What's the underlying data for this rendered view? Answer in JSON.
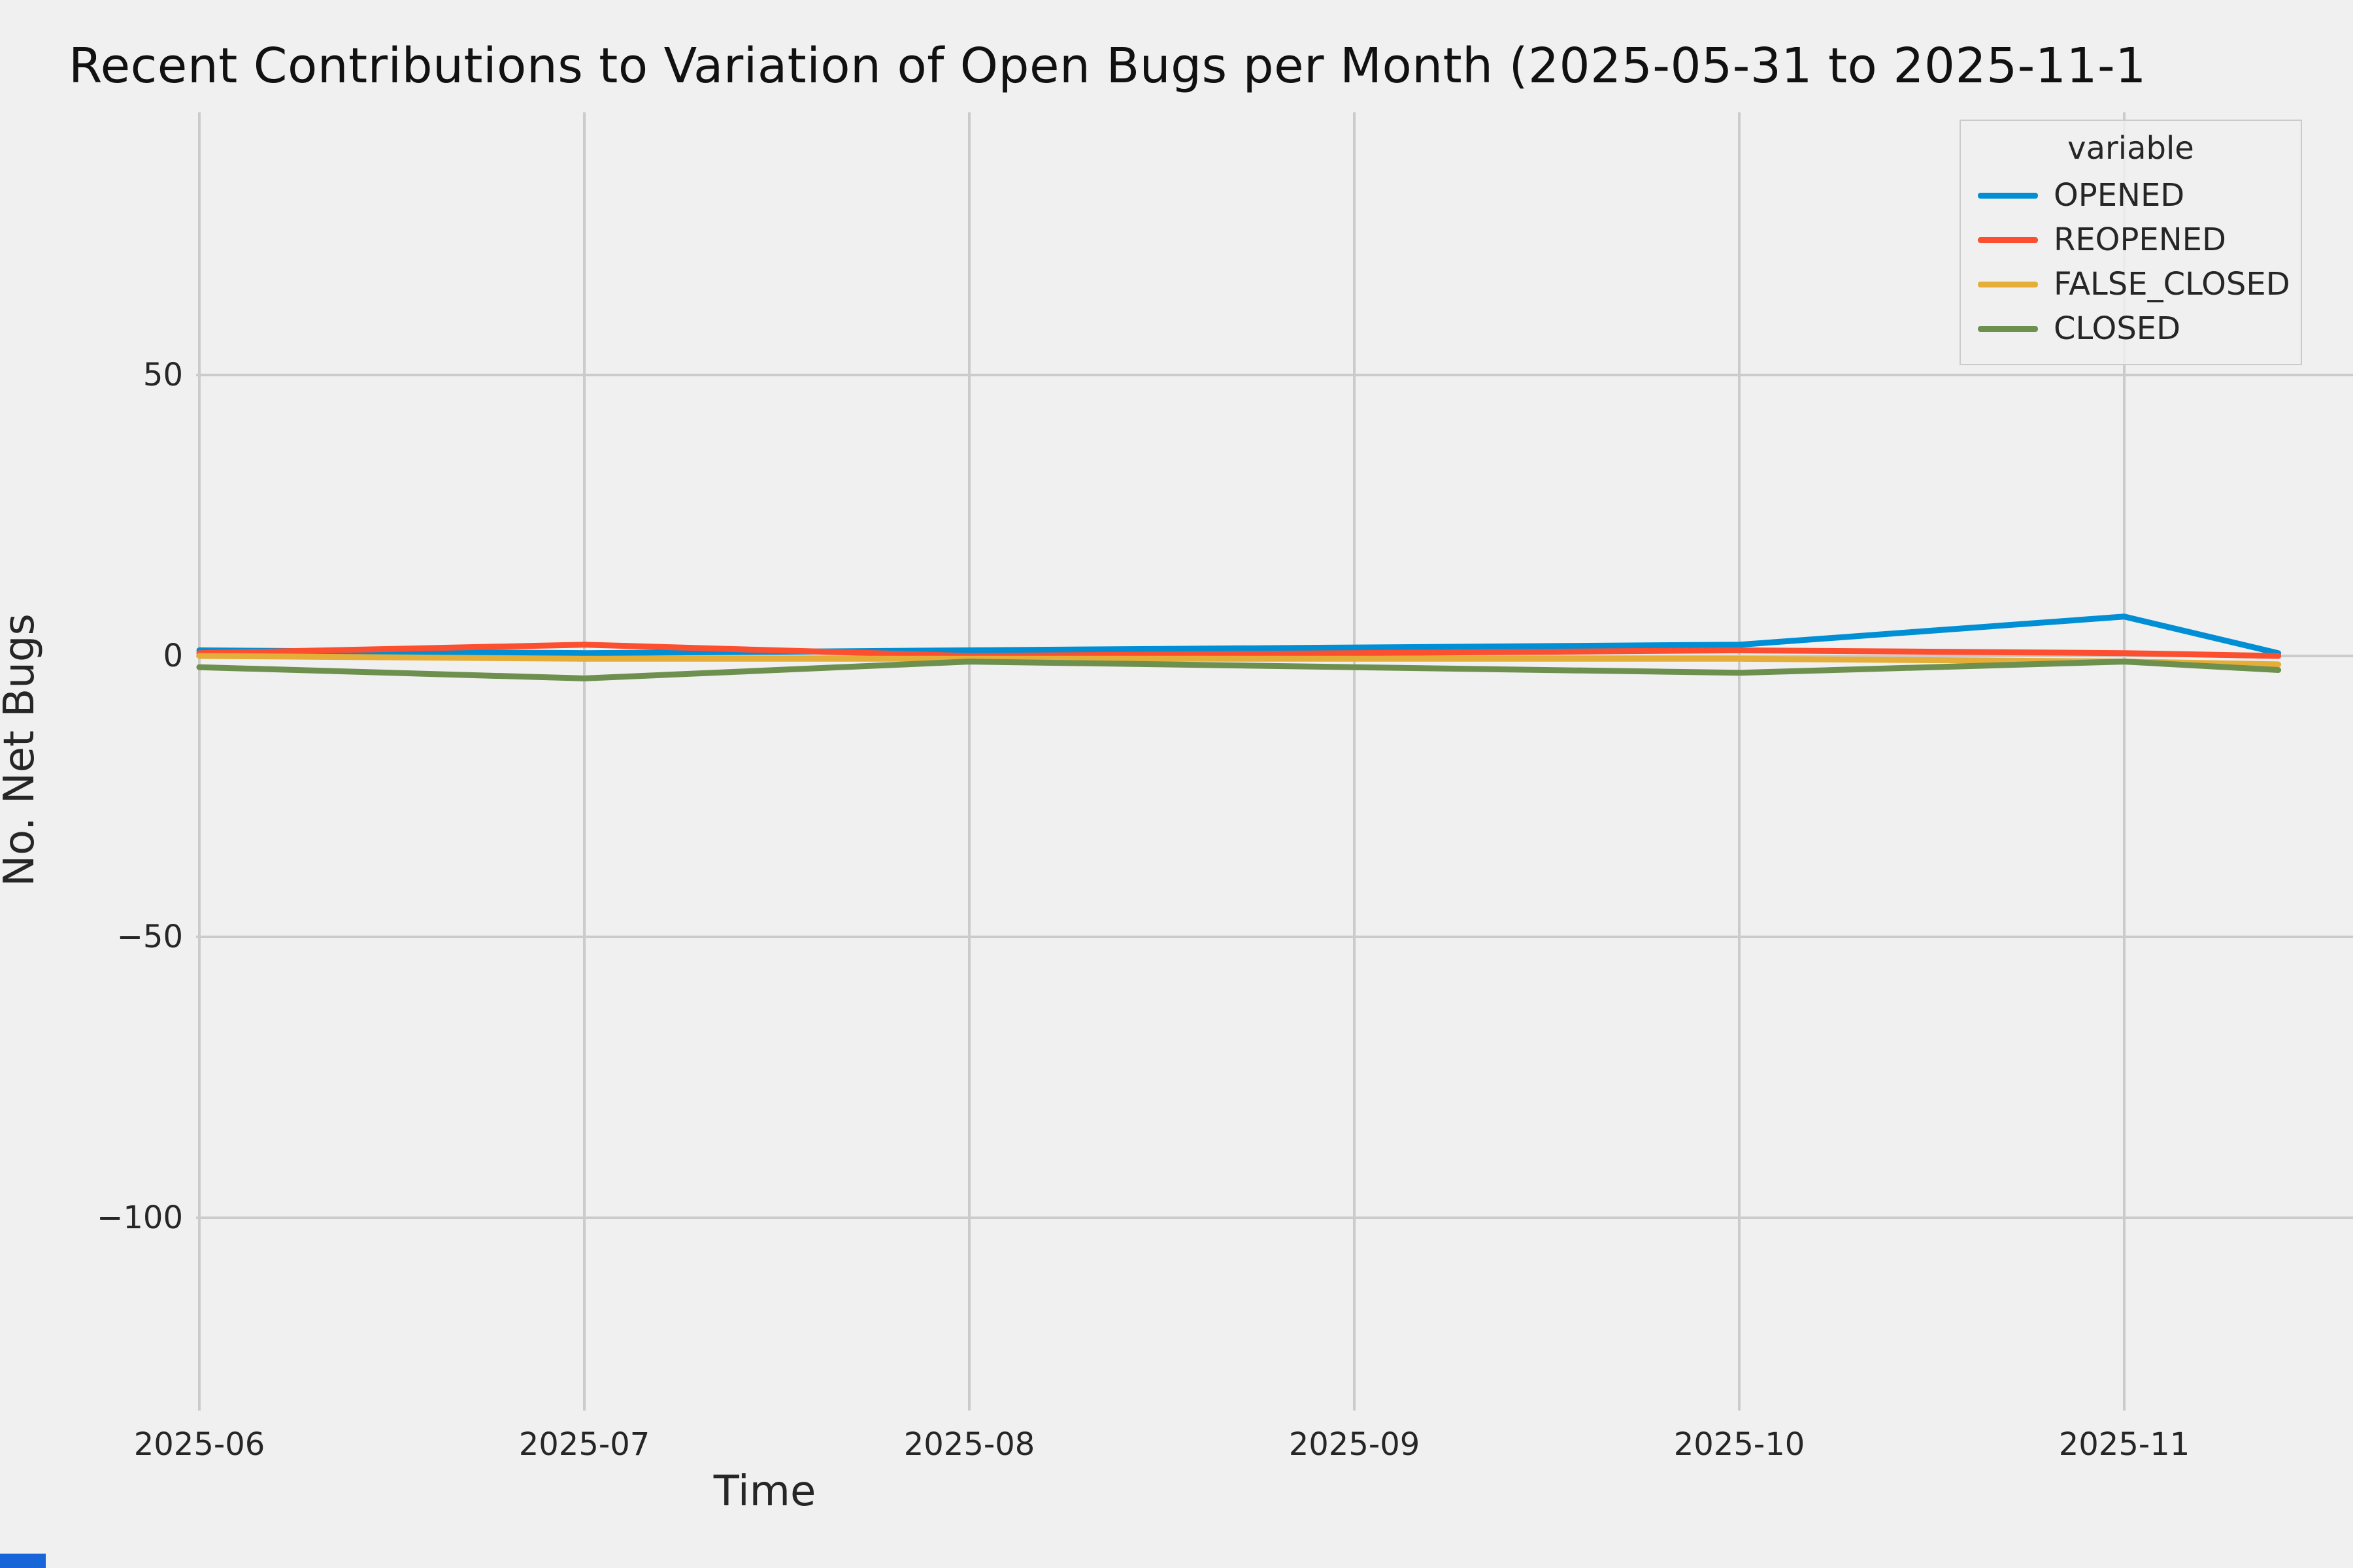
{
  "chart_data": {
    "type": "line",
    "title": "Recent Contributions to Variation of Open Bugs per Month (2025-05-31 to 2025-11-1",
    "xlabel": "Time",
    "ylabel": "No. Net Bugs",
    "x_tick_labels": [
      "2025-06",
      "2025-07",
      "2025-08",
      "2025-09",
      "2025-10",
      "2025-11"
    ],
    "y_tick_labels": [
      "50",
      "0",
      "−50",
      "−100"
    ],
    "y_tick_values": [
      50,
      0,
      -50,
      -100
    ],
    "x": [
      0,
      1,
      2,
      3,
      4,
      5,
      5.4
    ],
    "x_note": "x units are months after 2025-06; last point ~2025-11-12",
    "ylim": [
      -134,
      97
    ],
    "grid": true,
    "legend_title": "variable",
    "legend_position": "upper right",
    "background_color": "#f0f0f0",
    "gridline_color": "#cbcbcb",
    "series": [
      {
        "name": "OPENED",
        "color": "#008fd5",
        "values": [
          1.0,
          0.5,
          1.0,
          1.5,
          2.0,
          7.0,
          0.5
        ]
      },
      {
        "name": "REOPENED",
        "color": "#fc4f30",
        "values": [
          0.5,
          2.0,
          0.0,
          0.5,
          1.0,
          0.5,
          0.0
        ]
      },
      {
        "name": "FALSE_CLOSED",
        "color": "#e5ae38",
        "values": [
          0.0,
          -0.5,
          -0.5,
          -0.5,
          -0.5,
          -1.0,
          -1.5
        ]
      },
      {
        "name": "CLOSED",
        "color": "#6d904f",
        "values": [
          -2.0,
          -4.0,
          -1.0,
          -2.0,
          -3.0,
          -1.0,
          -2.5
        ]
      }
    ]
  },
  "decor": {
    "corner_fragment_color": "#1765d8"
  }
}
